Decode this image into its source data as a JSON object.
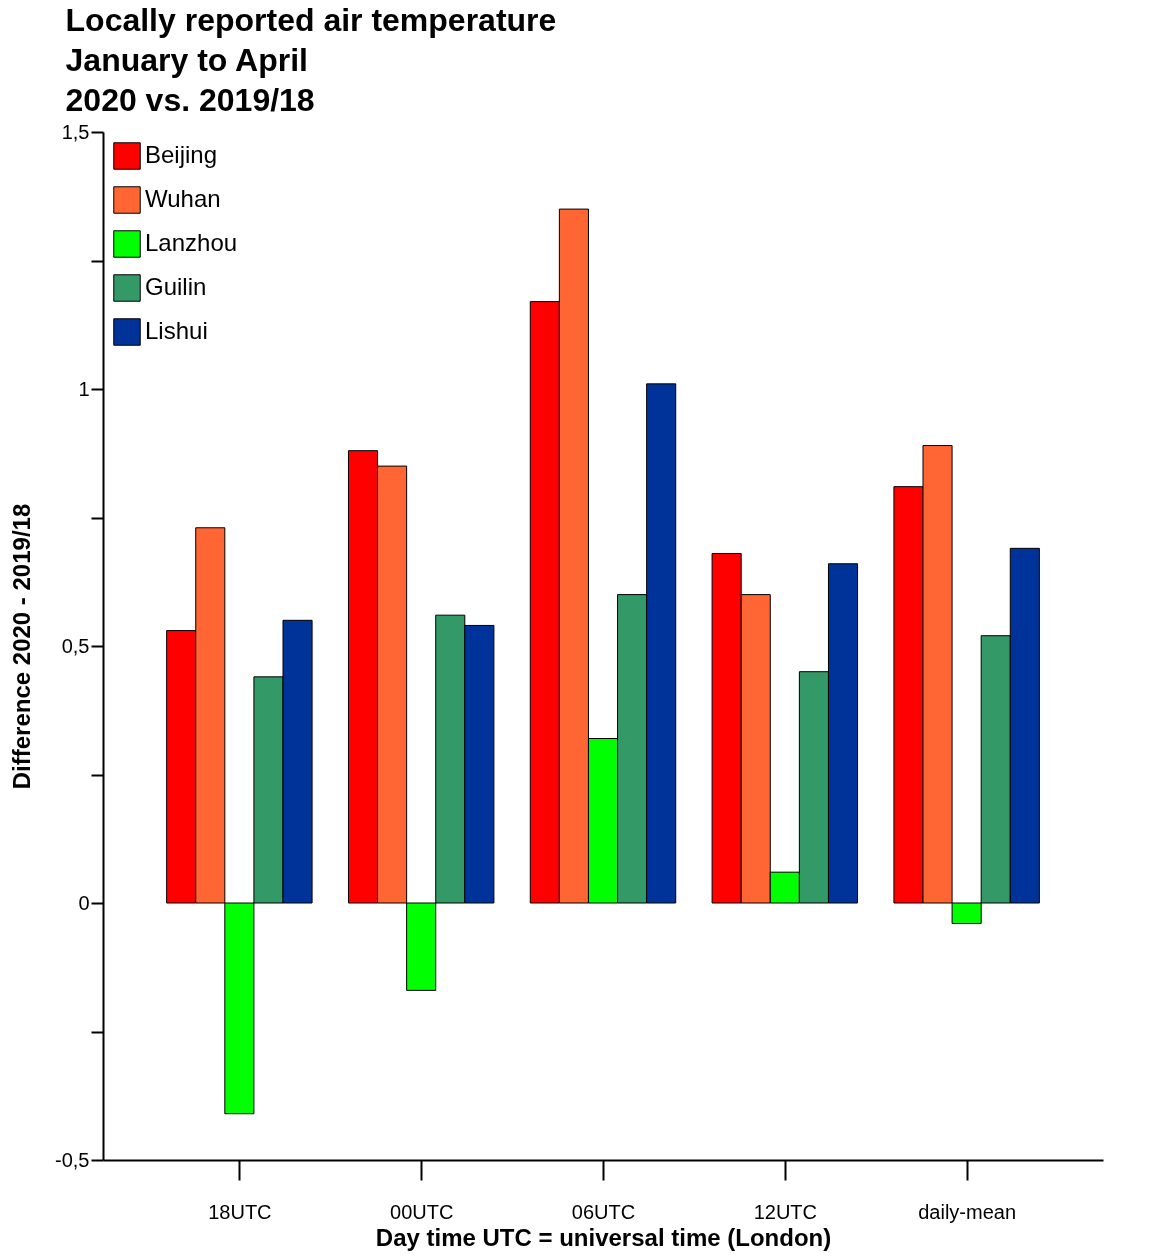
{
  "chart_data": {
    "type": "bar",
    "title": "Locally reported air temperature\nJanuary to April\n2020 vs. 2019/18",
    "xlabel": "Day time UTC = universal time (London)",
    "ylabel": "Difference 2020 - 2019/18",
    "categories": [
      "18UTC",
      "00UTC",
      "06UTC",
      "12UTC",
      "daily-mean"
    ],
    "series": [
      {
        "name": "Beijing",
        "color": "#ff0000",
        "values": [
          0.53,
          0.88,
          1.17,
          0.68,
          0.81
        ]
      },
      {
        "name": "Wuhan",
        "color": "#ff6633",
        "values": [
          0.73,
          0.85,
          1.35,
          0.6,
          0.89
        ]
      },
      {
        "name": "Lanzhou",
        "color": "#00ff00",
        "values": [
          -0.41,
          -0.17,
          0.32,
          0.06,
          -0.04
        ]
      },
      {
        "name": "Guilin",
        "color": "#339966",
        "values": [
          0.44,
          0.56,
          0.6,
          0.45,
          0.52
        ]
      },
      {
        "name": "Lishui",
        "color": "#003399",
        "values": [
          0.55,
          0.54,
          1.01,
          0.66,
          0.69
        ]
      }
    ],
    "ylim": [
      -0.5,
      1.5
    ],
    "yticks": [
      {
        "value": -0.5,
        "label": "-0,5"
      },
      {
        "value": -0.25,
        "label": null
      },
      {
        "value": 0,
        "label": "0"
      },
      {
        "value": 0.25,
        "label": null
      },
      {
        "value": 0.5,
        "label": "0,5"
      },
      {
        "value": 0.75,
        "label": null
      },
      {
        "value": 1,
        "label": "1"
      },
      {
        "value": 1.25,
        "label": null
      },
      {
        "value": 1.5,
        "label": "1,5"
      }
    ],
    "grid": false,
    "legend": "top left"
  }
}
